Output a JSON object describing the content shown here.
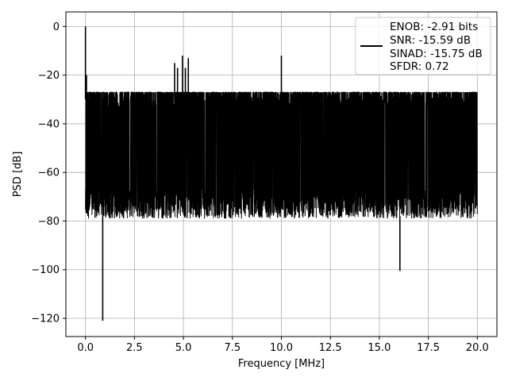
{
  "chart_data": {
    "type": "line",
    "xlabel": "Frequency [MHz]",
    "ylabel": "PSD [dB]",
    "xlim": [
      -1.0,
      21.0
    ],
    "ylim": [
      -127.5,
      6.0
    ],
    "xticks": [
      0.0,
      2.5,
      5.0,
      7.5,
      10.0,
      12.5,
      15.0,
      17.5,
      20.0
    ],
    "xtick_labels": [
      "0.0",
      "2.5",
      "5.0",
      "7.5",
      "10.0",
      "12.5",
      "15.0",
      "17.5",
      "20.0"
    ],
    "yticks": [
      0,
      -20,
      -40,
      -60,
      -80,
      -100,
      -120
    ],
    "ytick_labels": [
      "0",
      "−20",
      "−40",
      "−60",
      "−80",
      "−100",
      "−120"
    ],
    "grid": true,
    "legend_position": "top-right",
    "line_color": "#000000",
    "series": [
      {
        "name": "ENOB: -2.91 bits\nSNR: -15.59 dB\nSINAD: -15.75 dB\nSFDR: 0.72",
        "description": "dense noise-floor PSD trace spanning roughly -30 to -78 dB from 0 to 20 MHz",
        "noise_floor": {
          "x_range": [
            0.0,
            20.0
          ],
          "upper": -30,
          "lower": -78,
          "median": -50
        },
        "x": [
          0.0,
          0.05,
          0.1,
          0.88,
          4.55,
          4.7,
          4.95,
          5.1,
          5.25,
          10.0,
          16.05
        ],
        "y": [
          0.0,
          -20.0,
          -28.0,
          -121.0,
          -15.0,
          -17.0,
          -12.0,
          -17.0,
          -13.0,
          -12.0,
          -100.5
        ]
      }
    ],
    "legend": {
      "lines": [
        "ENOB: -2.91 bits",
        "SNR: -15.59 dB",
        "SINAD: -15.75 dB",
        "SFDR: 0.72"
      ]
    }
  }
}
